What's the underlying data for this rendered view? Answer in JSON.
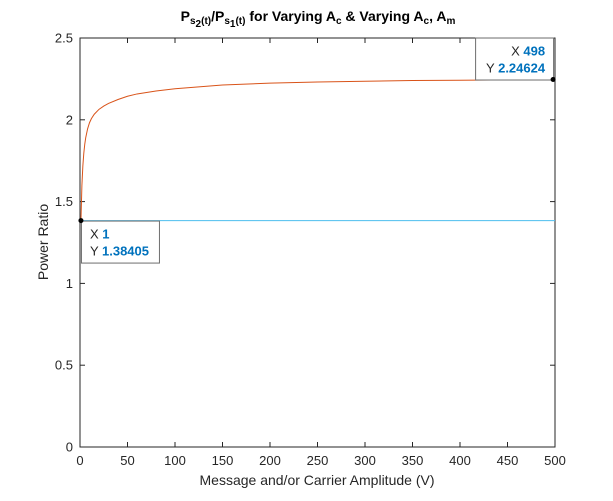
{
  "chart_data": {
    "type": "line",
    "title": {
      "p1": "P",
      "s1": "s",
      "s1a": "2",
      "s1b": "(t)",
      "slash": "/P",
      "s2": "s",
      "s2a": "1",
      "s2b": "(t)",
      "mid": " for Varying A",
      "c1": "c",
      "mid2": " & Varying A",
      "c2": "c",
      "comma": ", A",
      "m": "m"
    },
    "xlabel": "Message and/or Carrier Amplitude (V)",
    "ylabel": "Power Ratio",
    "xlim": [
      0,
      500
    ],
    "ylim": [
      0,
      2.5
    ],
    "xticks": [
      0,
      50,
      100,
      150,
      200,
      250,
      300,
      350,
      400,
      450,
      500
    ],
    "yticks": [
      0,
      0.5,
      1,
      1.5,
      2,
      2.5
    ],
    "ytick_labels": [
      "0",
      "0.5",
      "1",
      "1.5",
      "2",
      "2.5"
    ],
    "grid": false,
    "box": true,
    "series": [
      {
        "color": "#4DBEEE",
        "x": [
          1,
          500
        ],
        "y": [
          1.38405,
          1.38405
        ]
      },
      {
        "color": "#D95319",
        "x": [
          1,
          2,
          3,
          4,
          5,
          6,
          8,
          10,
          12,
          15,
          20,
          25,
          30,
          40,
          50,
          60,
          80,
          100,
          150,
          200,
          250,
          300,
          350,
          400,
          450,
          498
        ],
        "y": [
          1.38405,
          1.598,
          1.718,
          1.796,
          1.85,
          1.89,
          1.945,
          1.982,
          2.007,
          2.034,
          2.064,
          2.084,
          2.1,
          2.124,
          2.144,
          2.158,
          2.176,
          2.19,
          2.213,
          2.224,
          2.231,
          2.236,
          2.24,
          2.242,
          2.244,
          2.24624
        ]
      }
    ],
    "datatips": [
      {
        "x_label": "X",
        "x_value": "498",
        "y_label": "Y",
        "y_value": "2.24624",
        "x": 498,
        "y": 2.24624,
        "anchor": "top-right"
      },
      {
        "x_label": "X",
        "x_value": "1",
        "y_label": "Y",
        "y_value": "1.38405",
        "x": 1,
        "y": 1.38405,
        "anchor": "bottom-left"
      }
    ],
    "colors": {
      "axis": "#262626",
      "tip_value": "#0072BD",
      "tip_border": "#6E6E6E",
      "tip_fill": "#FFFFFF"
    }
  }
}
